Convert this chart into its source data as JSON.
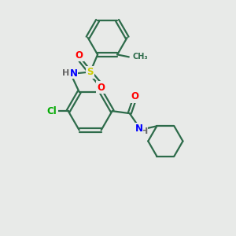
{
  "bg_color": "#e8eae8",
  "bond_color": "#2d6b4a",
  "bond_width": 1.6,
  "atom_colors": {
    "N": "#0000ff",
    "O": "#ff0000",
    "S": "#cccc00",
    "Cl": "#00aa00",
    "H": "#666666",
    "C": "#2d6b4a"
  },
  "font_size": 8.5,
  "figsize": [
    3.0,
    3.0
  ],
  "dpi": 100
}
